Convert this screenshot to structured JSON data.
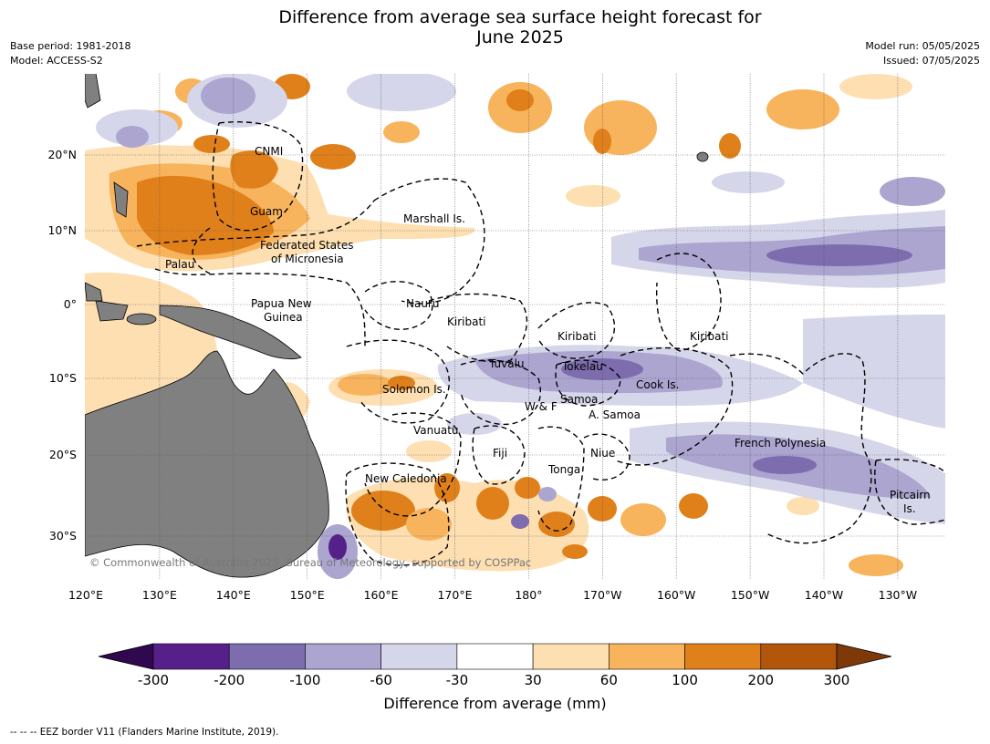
{
  "header": {
    "title_line1": "Difference from average sea surface height forecast for",
    "title_line2": "June 2025",
    "base_period": "Base period: 1981-2018",
    "model": "Model: ACCESS-S2",
    "model_run": "Model run: 05/05/2025",
    "issued": "Issued: 07/05/2025"
  },
  "map": {
    "lon_ticks": [
      "120°E",
      "130°E",
      "140°E",
      "150°E",
      "160°E",
      "170°E",
      "180°",
      "170°W",
      "160°W",
      "150°W",
      "140°W",
      "130°W"
    ],
    "lat_ticks": [
      "20°N",
      "10°N",
      "0°",
      "10°S",
      "20°S",
      "30°S"
    ],
    "copyright": "© Commonwealth of Australia 2025, Bureau of Meteorology, supported by COSPPac",
    "labels": [
      {
        "name": "cnmi",
        "text": "CNMI"
      },
      {
        "name": "guam",
        "text": "Guam"
      },
      {
        "name": "marshall",
        "text": "Marshall Is."
      },
      {
        "name": "fsm1",
        "text": "Federated States"
      },
      {
        "name": "fsm2",
        "text": "of Micronesia"
      },
      {
        "name": "palau",
        "text": "Palau"
      },
      {
        "name": "png1",
        "text": "Papua New"
      },
      {
        "name": "png2",
        "text": "Guinea"
      },
      {
        "name": "nauru",
        "text": "Nauru"
      },
      {
        "name": "kiribati-w",
        "text": "Kiribati"
      },
      {
        "name": "kiribati-c",
        "text": "Kiribati"
      },
      {
        "name": "kiribati-e",
        "text": "Kiribati"
      },
      {
        "name": "tuvalu",
        "text": "Tuvalu"
      },
      {
        "name": "tokelau",
        "text": "Tokelau"
      },
      {
        "name": "cook",
        "text": "Cook Is."
      },
      {
        "name": "solomon",
        "text": "Solomon Is."
      },
      {
        "name": "samoa",
        "text": "Samoa"
      },
      {
        "name": "wf",
        "text": "W & F"
      },
      {
        "name": "asamoa",
        "text": "A. Samoa"
      },
      {
        "name": "vanuatu",
        "text": "Vanuatu"
      },
      {
        "name": "fiji",
        "text": "Fiji"
      },
      {
        "name": "niue",
        "text": "Niue"
      },
      {
        "name": "frpoly",
        "text": "French Polynesia"
      },
      {
        "name": "tonga",
        "text": "Tonga"
      },
      {
        "name": "newcal",
        "text": "New Caledonia"
      },
      {
        "name": "pitcairn1",
        "text": "Pitcairn"
      },
      {
        "name": "pitcairn2",
        "text": "Is."
      }
    ]
  },
  "colorbar": {
    "ticks": [
      "-300",
      "-200",
      "-100",
      "-60",
      "-30",
      "30",
      "60",
      "100",
      "200",
      "300"
    ],
    "colors": [
      "#56208a",
      "#7d6daf",
      "#aba5d0",
      "#d6d6ea",
      "#ffffff",
      "#fddfb2",
      "#f8b35d",
      "#e0801a",
      "#b1560a"
    ],
    "under_color": "#2f0850",
    "over_color": "#7f3908",
    "title": "Difference from average (mm)"
  },
  "legend_note": "--  --  -- EEZ border V11 (Flanders Marine Institute, 2019)."
}
